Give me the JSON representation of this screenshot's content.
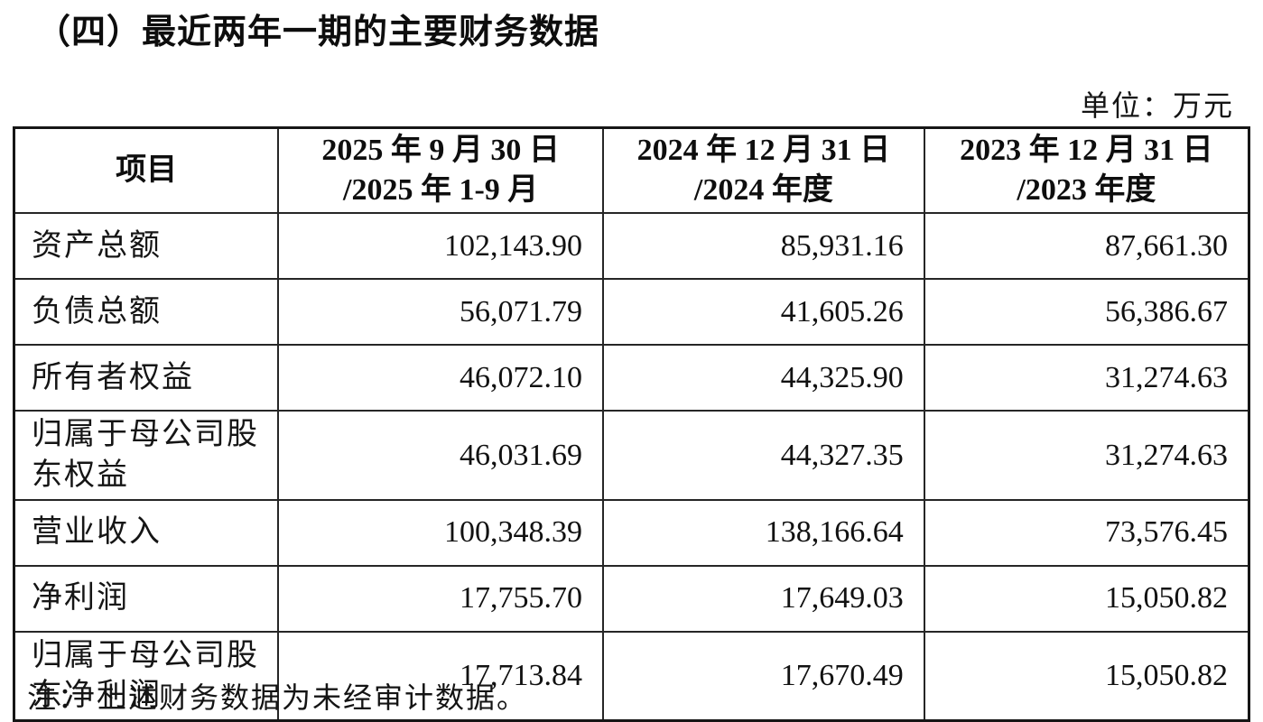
{
  "page": {
    "title": "（四）最近两年一期的主要财务数据",
    "unit_label": "单位：万元",
    "note": "注： 上述财务数据为未经审计数据。"
  },
  "table": {
    "header": {
      "item": "项目",
      "periods": [
        {
          "line1": "2025 年 9 月 30 日",
          "line2": "/2025 年 1-9 月"
        },
        {
          "line1": "2024 年 12 月 31 日",
          "line2": "/2024 年度"
        },
        {
          "line1": "2023 年 12 月 31 日",
          "line2": "/2023 年度"
        }
      ]
    },
    "rows": [
      {
        "item": "资产总额",
        "values": [
          "102,143.90",
          "85,931.16",
          "87,661.30"
        ]
      },
      {
        "item": "负债总额",
        "values": [
          "56,071.79",
          "41,605.26",
          "56,386.67"
        ]
      },
      {
        "item": "所有者权益",
        "values": [
          "46,072.10",
          "44,325.90",
          "31,274.63"
        ]
      },
      {
        "item": "归属于母公司股东权益",
        "values": [
          "46,031.69",
          "44,327.35",
          "31,274.63"
        ]
      },
      {
        "item": "营业收入",
        "values": [
          "100,348.39",
          "138,166.64",
          "73,576.45"
        ]
      },
      {
        "item": "净利润",
        "values": [
          "17,755.70",
          "17,649.03",
          "15,050.82"
        ]
      },
      {
        "item": "归属于母公司股东净利润",
        "values": [
          "17,713.84",
          "17,670.49",
          "15,050.82"
        ]
      }
    ]
  }
}
